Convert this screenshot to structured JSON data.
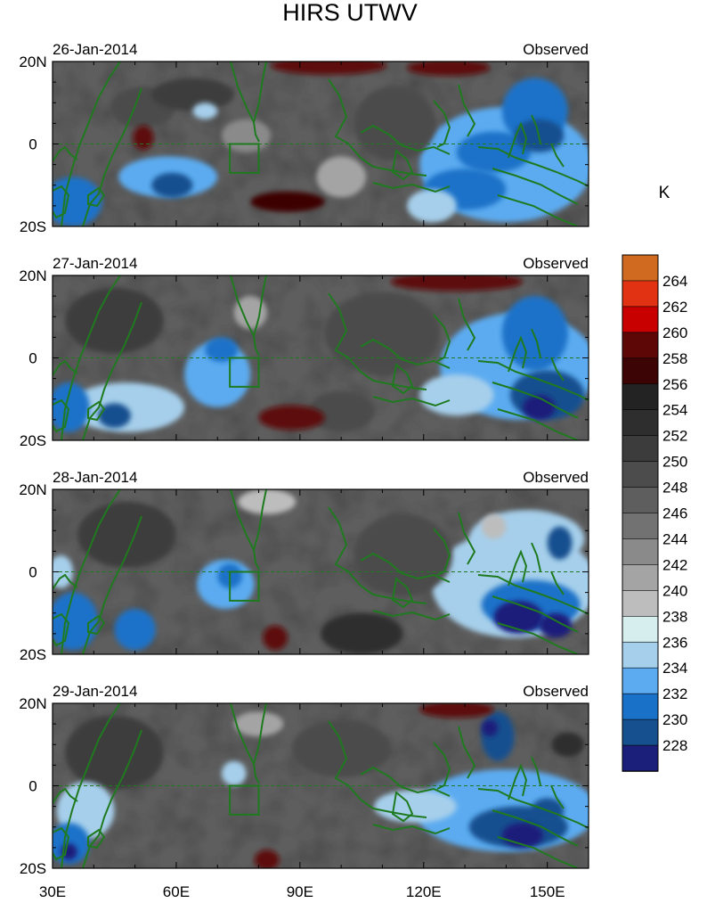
{
  "chart_data": {
    "type": "heatmap",
    "title": "HIRS UTWV",
    "unit_label": "K",
    "x_ticks": [
      "30E",
      "60E",
      "90E",
      "120E",
      "150E"
    ],
    "x_tick_values": [
      30,
      60,
      90,
      120,
      150
    ],
    "y_ticks": [
      "20N",
      "0",
      "20S"
    ],
    "y_tick_values": [
      20,
      0,
      -20
    ],
    "xlim": [
      30,
      160
    ],
    "ylim": [
      -20,
      20
    ],
    "colorbar": {
      "levels": [
        228,
        230,
        232,
        234,
        236,
        238,
        240,
        242,
        244,
        246,
        248,
        250,
        252,
        254,
        256,
        258,
        260,
        262,
        264
      ],
      "labels": [
        "264",
        "262",
        "260",
        "258",
        "256",
        "254",
        "252",
        "250",
        "248",
        "246",
        "244",
        "242",
        "240",
        "238",
        "236",
        "234",
        "232",
        "230",
        "228"
      ],
      "colors": [
        "#1c1f7a",
        "#16508f",
        "#1a72c8",
        "#2f8fe0",
        "#5cabf0",
        "#a6cfeb",
        "#d6eeee",
        "#bdbdbd",
        "#a4a4a4",
        "#8a8a8a",
        "#727272",
        "#5e5e5e",
        "#4c4c4c",
        "#3c3c3c",
        "#2e2e2e",
        "#232323",
        "#1c1c1c",
        "#3c0404",
        "#5d0707",
        "#c80000",
        "#e23214",
        "#cf6a20"
      ]
    },
    "panels": [
      {
        "date": "26-Jan-2014",
        "label": "Observed",
        "features": [
          {
            "lon": 97,
            "lat": 19,
            "rx": 14,
            "ry": 2.2,
            "value": 259
          },
          {
            "lon": 126,
            "lat": 18.5,
            "rx": 10,
            "ry": 2,
            "value": 259
          },
          {
            "lon": 52,
            "lat": 1.5,
            "rx": 2.5,
            "ry": 3,
            "value": 259
          },
          {
            "lon": 87,
            "lat": -14,
            "rx": 9,
            "ry": 2.5,
            "value": 258
          },
          {
            "lon": 52,
            "lat": 9,
            "rx": 8,
            "ry": 5,
            "value": 250
          },
          {
            "lon": 64,
            "lat": 12,
            "rx": 10,
            "ry": 4,
            "value": 252
          },
          {
            "lon": 113,
            "lat": 5,
            "rx": 10,
            "ry": 9,
            "value": 250
          },
          {
            "lon": 140,
            "lat": -5,
            "rx": 21,
            "ry": 14,
            "value": 234
          },
          {
            "lon": 147,
            "lat": 8,
            "rx": 8,
            "ry": 8,
            "value": 232
          },
          {
            "lon": 148,
            "lat": 2,
            "rx": 6,
            "ry": 4,
            "value": 229
          },
          {
            "lon": 137,
            "lat": -2,
            "rx": 9,
            "ry": 5,
            "value": 231
          },
          {
            "lon": 130,
            "lat": -11,
            "rx": 10,
            "ry": 5,
            "value": 232
          },
          {
            "lon": 122,
            "lat": -15,
            "rx": 6,
            "ry": 4,
            "value": 236
          },
          {
            "lon": 67,
            "lat": 8,
            "rx": 3,
            "ry": 2,
            "value": 236
          },
          {
            "lon": 58,
            "lat": -8,
            "rx": 12,
            "ry": 5,
            "value": 234
          },
          {
            "lon": 59,
            "lat": -10,
            "rx": 5,
            "ry": 3,
            "value": 230
          },
          {
            "lon": 35,
            "lat": -14,
            "rx": 7,
            "ry": 6,
            "value": 232
          },
          {
            "lon": 100,
            "lat": -8,
            "rx": 6,
            "ry": 5,
            "value": 242
          },
          {
            "lon": 77,
            "lat": 2,
            "rx": 6,
            "ry": 4,
            "value": 244
          }
        ]
      },
      {
        "date": "27-Jan-2014",
        "label": "Observed",
        "features": [
          {
            "lon": 128,
            "lat": 18.5,
            "rx": 16,
            "ry": 2.3,
            "value": 259
          },
          {
            "lon": 88,
            "lat": -14.5,
            "rx": 8,
            "ry": 3,
            "value": 259
          },
          {
            "lon": 45,
            "lat": 9,
            "rx": 12,
            "ry": 8,
            "value": 251
          },
          {
            "lon": 110,
            "lat": 6,
            "rx": 14,
            "ry": 10,
            "value": 250
          },
          {
            "lon": 100,
            "lat": -13,
            "rx": 8,
            "ry": 5,
            "value": 250
          },
          {
            "lon": 143,
            "lat": -2,
            "rx": 19,
            "ry": 13,
            "value": 234
          },
          {
            "lon": 147,
            "lat": 6,
            "rx": 8,
            "ry": 9,
            "value": 231
          },
          {
            "lon": 150,
            "lat": -9,
            "rx": 9,
            "ry": 6,
            "value": 230
          },
          {
            "lon": 148,
            "lat": -12,
            "rx": 4,
            "ry": 3,
            "value": 228
          },
          {
            "lon": 128,
            "lat": -9,
            "rx": 9,
            "ry": 5,
            "value": 236
          },
          {
            "lon": 70,
            "lat": -4,
            "rx": 8,
            "ry": 8,
            "value": 234
          },
          {
            "lon": 71,
            "lat": 2,
            "rx": 4,
            "ry": 3,
            "value": 231
          },
          {
            "lon": 48,
            "lat": -12,
            "rx": 14,
            "ry": 6,
            "value": 236
          },
          {
            "lon": 45,
            "lat": -14,
            "rx": 4,
            "ry": 3,
            "value": 230
          },
          {
            "lon": 34,
            "lat": -12,
            "rx": 5,
            "ry": 6,
            "value": 232
          },
          {
            "lon": 78,
            "lat": 11,
            "rx": 4,
            "ry": 4,
            "value": 242
          }
        ]
      },
      {
        "date": "28-Jan-2014",
        "label": "Observed",
        "features": [
          {
            "lon": 84,
            "lat": -16,
            "rx": 3,
            "ry": 3,
            "value": 259
          },
          {
            "lon": 82,
            "lat": 17,
            "rx": 7,
            "ry": 3,
            "value": 240
          },
          {
            "lon": 48,
            "lat": 9,
            "rx": 12,
            "ry": 8,
            "value": 252
          },
          {
            "lon": 115,
            "lat": 4,
            "rx": 12,
            "ry": 10,
            "value": 250
          },
          {
            "lon": 105,
            "lat": -15,
            "rx": 10,
            "ry": 5,
            "value": 254
          },
          {
            "lon": 142,
            "lat": -3,
            "rx": 20,
            "ry": 13,
            "value": 236
          },
          {
            "lon": 145,
            "lat": 8,
            "rx": 14,
            "ry": 7,
            "value": 236
          },
          {
            "lon": 146,
            "lat": -8,
            "rx": 12,
            "ry": 6,
            "value": 231
          },
          {
            "lon": 143,
            "lat": -11,
            "rx": 6,
            "ry": 4,
            "value": 228
          },
          {
            "lon": 152,
            "lat": -13,
            "rx": 4,
            "ry": 3,
            "value": 228
          },
          {
            "lon": 153,
            "lat": 7,
            "rx": 3,
            "ry": 4,
            "value": 230
          },
          {
            "lon": 137,
            "lat": 11,
            "rx": 3,
            "ry": 3,
            "value": 240
          },
          {
            "lon": 72,
            "lat": -3,
            "rx": 7,
            "ry": 6,
            "value": 234
          },
          {
            "lon": 73,
            "lat": -1,
            "rx": 3,
            "ry": 3,
            "value": 231
          },
          {
            "lon": 35,
            "lat": -12,
            "rx": 6,
            "ry": 7,
            "value": 232
          },
          {
            "lon": 50,
            "lat": -14,
            "rx": 5,
            "ry": 5,
            "value": 232
          },
          {
            "lon": 32,
            "lat": 0,
            "rx": 3,
            "ry": 4,
            "value": 236
          }
        ]
      },
      {
        "date": "29-Jan-2014",
        "label": "Observed",
        "features": [
          {
            "lon": 128,
            "lat": 18.5,
            "rx": 9,
            "ry": 2,
            "value": 259
          },
          {
            "lon": 82,
            "lat": -18,
            "rx": 3,
            "ry": 2.5,
            "value": 259
          },
          {
            "lon": 45,
            "lat": 8,
            "rx": 12,
            "ry": 9,
            "value": 252
          },
          {
            "lon": 100,
            "lat": 9,
            "rx": 12,
            "ry": 7,
            "value": 250
          },
          {
            "lon": 155,
            "lat": 10,
            "rx": 4,
            "ry": 3,
            "value": 254
          },
          {
            "lon": 140,
            "lat": -6,
            "rx": 22,
            "ry": 10,
            "value": 234
          },
          {
            "lon": 138,
            "lat": 12,
            "rx": 4,
            "ry": 6,
            "value": 230
          },
          {
            "lon": 136,
            "lat": 14,
            "rx": 2,
            "ry": 2,
            "value": 228
          },
          {
            "lon": 143,
            "lat": -10,
            "rx": 12,
            "ry": 5,
            "value": 230
          },
          {
            "lon": 144,
            "lat": -12,
            "rx": 5,
            "ry": 3,
            "value": 228
          },
          {
            "lon": 150,
            "lat": -6,
            "rx": 4,
            "ry": 3,
            "value": 229
          },
          {
            "lon": 118,
            "lat": -5,
            "rx": 10,
            "ry": 4,
            "value": 236
          },
          {
            "lon": 38,
            "lat": -6,
            "rx": 7,
            "ry": 7,
            "value": 236
          },
          {
            "lon": 34,
            "lat": -14,
            "rx": 5,
            "ry": 5,
            "value": 232
          },
          {
            "lon": 34,
            "lat": -16,
            "rx": 2,
            "ry": 2,
            "value": 228
          },
          {
            "lon": 74,
            "lat": 3,
            "rx": 3,
            "ry": 3,
            "value": 236
          },
          {
            "lon": 80,
            "lat": 15,
            "rx": 6,
            "ry": 3,
            "value": 242
          }
        ]
      }
    ]
  }
}
